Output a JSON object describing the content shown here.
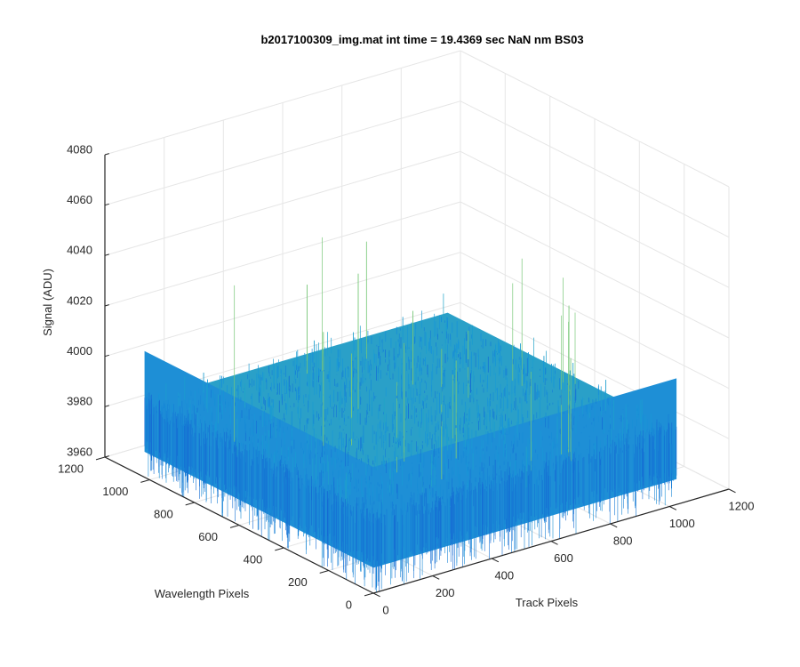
{
  "chart_data": {
    "type": "surface",
    "title": "b2017100309_img.mat int time = 19.4369 sec  NaN nm BS03",
    "xlabel": "Track Pixels",
    "ylabel": "Wavelength Pixels",
    "zlabel": "Signal (ADU)",
    "xlim": [
      0,
      1200
    ],
    "ylim": [
      0,
      1200
    ],
    "zlim": [
      3960,
      4080
    ],
    "xticks": [
      "0",
      "200",
      "400",
      "600",
      "800",
      "1000",
      "1200"
    ],
    "yticks": [
      "0",
      "200",
      "400",
      "600",
      "800",
      "1000",
      "1200"
    ],
    "zticks": [
      "3960",
      "3980",
      "4000",
      "4020",
      "4040",
      "4060",
      "4080"
    ],
    "data_extent": {
      "x": [
        1,
        1024
      ],
      "y": [
        1,
        1024
      ]
    },
    "signal_mean": 3990,
    "signal_noise_range": [
      3970,
      4010
    ],
    "grid": true,
    "colormap": "parula",
    "colors": {
      "low": "#1f6fd8",
      "mid": "#22a3c8",
      "high": "#4dbf9a",
      "grid": "#e6e6e6",
      "axis": "#262626"
    }
  }
}
